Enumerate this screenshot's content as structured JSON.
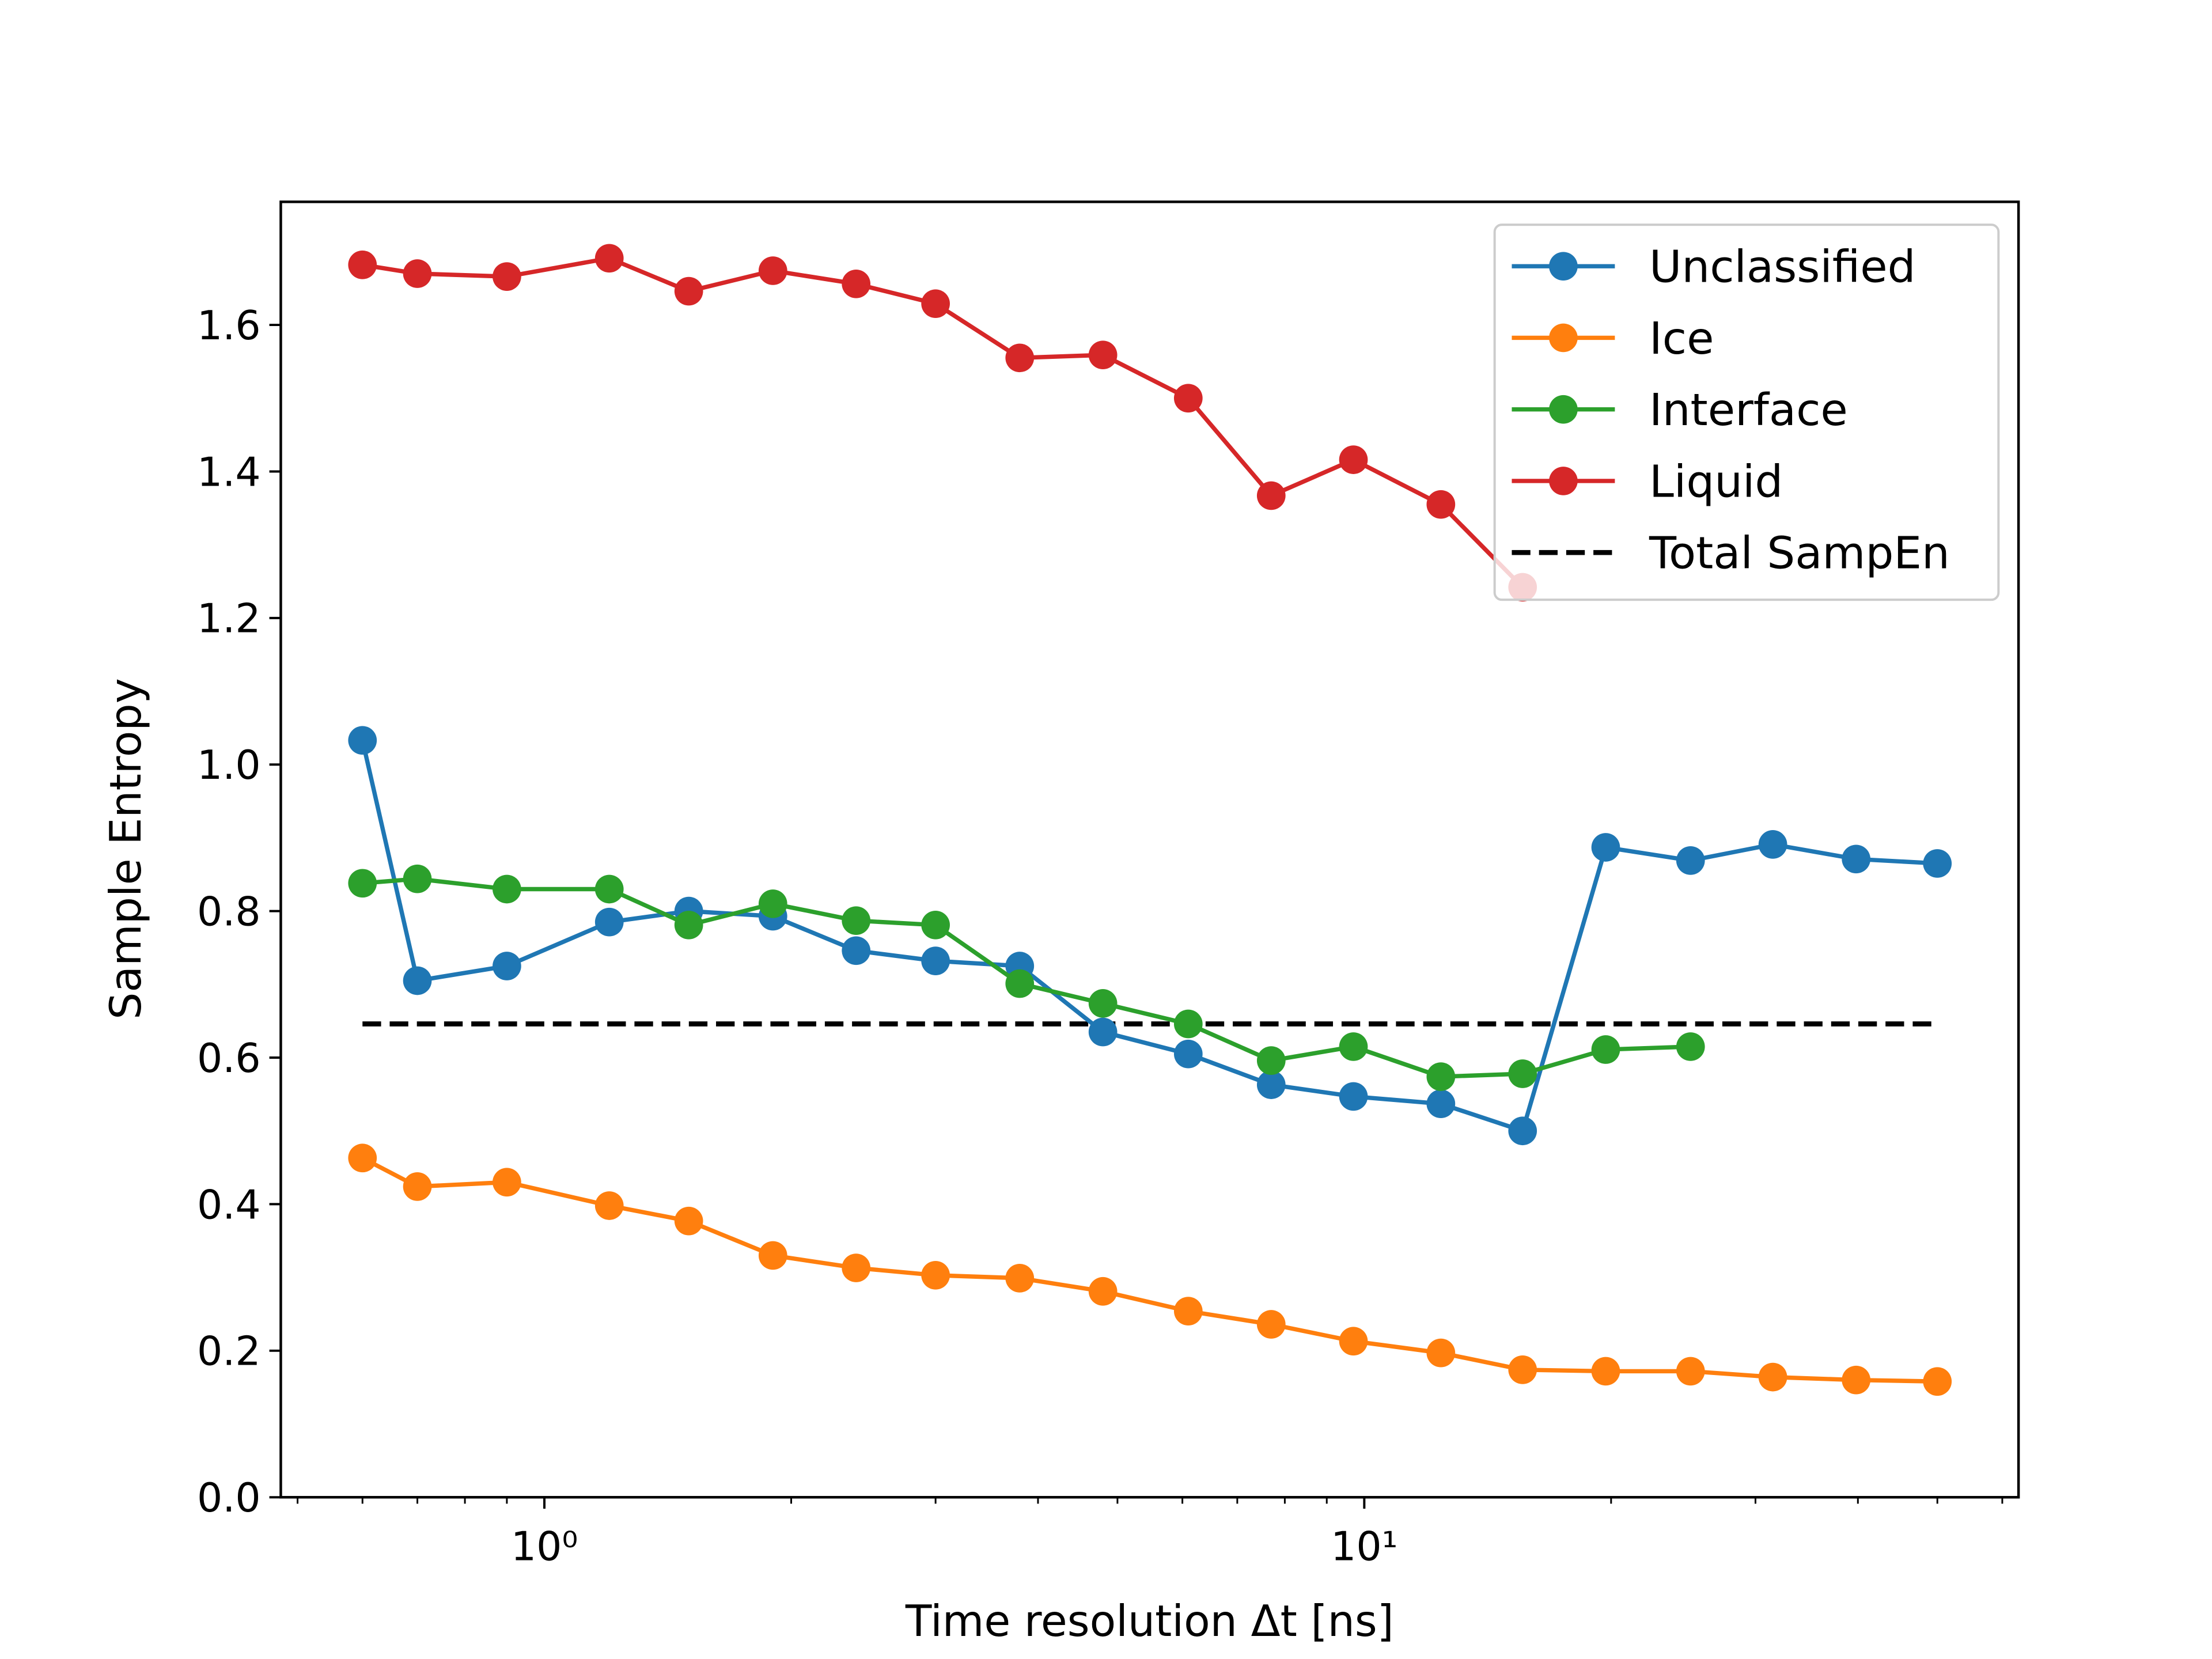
{
  "chart_data": {
    "type": "line",
    "xlabel": "Time resolution Δt [ns]",
    "ylabel": "Sample Entropy",
    "xscale": "log",
    "x": [
      0.6,
      0.7,
      0.9,
      1.2,
      1.5,
      1.9,
      2.4,
      3.0,
      3.8,
      4.8,
      6.1,
      7.7,
      9.7,
      12.4,
      15.6,
      19.7,
      25,
      31.5,
      39.8,
      50
    ],
    "series": [
      {
        "name": "Unclassified",
        "color": "#1f77b4",
        "values": [
          1.033,
          0.705,
          0.725,
          0.785,
          0.8,
          0.793,
          0.746,
          0.732,
          0.725,
          0.635,
          0.605,
          0.563,
          0.547,
          0.537,
          0.5,
          0.887,
          0.869,
          0.891,
          0.871,
          0.865
        ]
      },
      {
        "name": "Ice",
        "color": "#ff7f0e",
        "values": [
          0.463,
          0.424,
          0.43,
          0.398,
          0.377,
          0.33,
          0.313,
          0.303,
          0.299,
          0.281,
          0.254,
          0.236,
          0.213,
          0.197,
          0.174,
          0.172,
          0.172,
          0.164,
          0.16,
          0.158
        ]
      },
      {
        "name": "Interface",
        "color": "#2ca02c",
        "values": [
          0.838,
          0.844,
          0.83,
          0.83,
          0.781,
          0.81,
          0.787,
          0.781,
          0.701,
          0.674,
          0.646,
          0.596,
          0.615,
          0.574,
          0.578,
          0.611,
          0.615,
          null,
          null,
          null
        ]
      },
      {
        "name": "Liquid",
        "color": "#d62728",
        "values": [
          1.682,
          1.67,
          1.666,
          1.691,
          1.646,
          1.674,
          1.656,
          1.629,
          1.555,
          1.559,
          1.5,
          1.367,
          1.416,
          1.355,
          1.242,
          null,
          null,
          null,
          null,
          null
        ]
      }
    ],
    "reference_line": {
      "name": "Total SampEn",
      "color": "#000000",
      "linestyle": "dashed",
      "value": 0.646,
      "xmin": 0.6,
      "xmax": 50
    },
    "xlim": [
      0.477,
      62.8
    ],
    "ylim": [
      0,
      1.768
    ],
    "xticks": [
      {
        "value": 1,
        "label": "10⁰"
      },
      {
        "value": 10,
        "label": "10¹"
      }
    ],
    "xminorticks": [
      0.5,
      0.6,
      0.7,
      0.8,
      0.9,
      2,
      3,
      4,
      5,
      6,
      7,
      8,
      9,
      20,
      30,
      40,
      50,
      60
    ],
    "yticks": [
      {
        "value": 0,
        "label": "0.0"
      },
      {
        "value": 0.2,
        "label": "0.2"
      },
      {
        "value": 0.4,
        "label": "0.4"
      },
      {
        "value": 0.6,
        "label": "0.6"
      },
      {
        "value": 0.8,
        "label": "0.8"
      },
      {
        "value": 1,
        "label": "1.0"
      },
      {
        "value": 1.2,
        "label": "1.2"
      },
      {
        "value": 1.4,
        "label": "1.4"
      },
      {
        "value": 1.6,
        "label": "1.6"
      }
    ],
    "grid": false,
    "legend": "upper right"
  }
}
